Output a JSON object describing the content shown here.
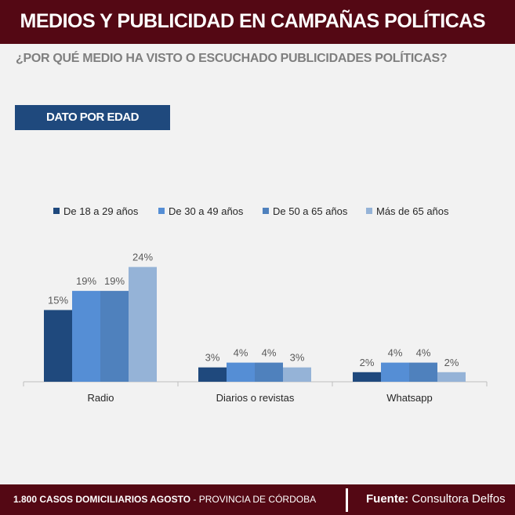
{
  "header": {
    "title": "MEDIOS Y PUBLICIDAD EN CAMPAÑAS POLÍTICAS"
  },
  "question": "¿POR QUÉ MEDIO HA VISTO O ESCUCHADO PUBLICIDADES POLÍTICAS?",
  "tab_label": "DATO POR EDAD",
  "footer": {
    "cases_bold": "1.800 CASOS DOMICILIARIOS AGOSTO",
    "cases_rest": " - PROVINCIA DE CÓRDOBA",
    "source_label": "Fuente:",
    "source": " Consultora Delfos"
  },
  "chart_data": {
    "type": "bar",
    "categories": [
      "Radio",
      "Diarios o revistas",
      "Whatsapp"
    ],
    "series": [
      {
        "name": "De 18 a 29 años",
        "values": [
          15,
          3,
          2
        ],
        "color": "#1f497d"
      },
      {
        "name": "De 30 a 49 años",
        "values": [
          19,
          4,
          4
        ],
        "color": "#558ed5"
      },
      {
        "name": "De 50 a 65 años",
        "values": [
          19,
          4,
          4
        ],
        "color": "#4f81bd"
      },
      {
        "name": "Más de 65 años",
        "values": [
          24,
          3,
          2
        ],
        "color": "#95b3d7"
      }
    ],
    "value_format": "%",
    "legend": "top",
    "grid": false
  }
}
